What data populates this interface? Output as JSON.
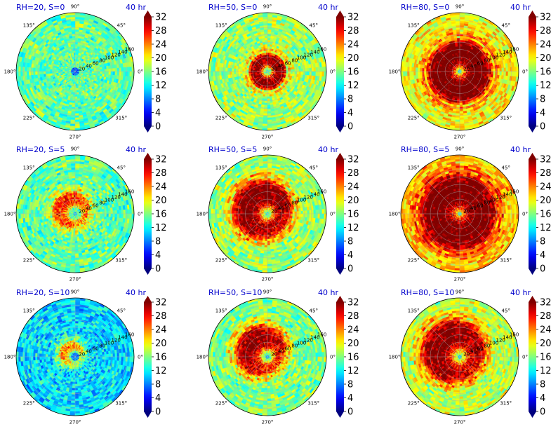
{
  "chart_data": {
    "type": "heatmap",
    "projection": "polar",
    "panel_time_label": "40 hr",
    "angle_tick_labels": [
      "0°",
      "45°",
      "90°",
      "135°",
      "180°",
      "225°",
      "270°",
      "315°"
    ],
    "radial_tick_labels": [
      "20",
      "40",
      "60",
      "80",
      "100",
      "120",
      "140",
      "160"
    ],
    "radial_range": [
      0,
      160
    ],
    "grid": true,
    "colormap": "jet",
    "colorbar": {
      "range": [
        0,
        32
      ],
      "ticks": [
        "0",
        "4",
        "8",
        "12",
        "16",
        "20",
        "24",
        "28",
        "32"
      ],
      "extend": "both"
    },
    "panels": [
      {
        "title": "RH=20, S=0",
        "core_value": 7,
        "core_radius": 12,
        "ring_value": 15,
        "ring_inner": 0,
        "ring_outer": 0,
        "background": 15,
        "asym": 0.0
      },
      {
        "title": "RH=50, S=0",
        "core_value": 14,
        "core_radius": 8,
        "ring_value": 32,
        "ring_inner": 10,
        "ring_outer": 55,
        "background": 17,
        "asym": 0.0
      },
      {
        "title": "RH=80, S=0",
        "core_value": 13,
        "core_radius": 6,
        "ring_value": 34,
        "ring_inner": 8,
        "ring_outer": 95,
        "background": 20,
        "asym": 0.0
      },
      {
        "title": "RH=20, S=5",
        "core_value": 10,
        "core_radius": 8,
        "ring_value": 27,
        "ring_inner": 15,
        "ring_outer": 55,
        "background": 15,
        "asym": 0.6
      },
      {
        "title": "RH=50, S=5",
        "core_value": 14,
        "core_radius": 8,
        "ring_value": 33,
        "ring_inner": 10,
        "ring_outer": 90,
        "background": 17,
        "asym": 0.4
      },
      {
        "title": "RH=80, S=5",
        "core_value": 13,
        "core_radius": 6,
        "ring_value": 34,
        "ring_inner": 8,
        "ring_outer": 115,
        "background": 22,
        "asym": 0.1
      },
      {
        "title": "RH=20, S=10",
        "core_value": 8,
        "core_radius": 10,
        "ring_value": 24,
        "ring_inner": 12,
        "ring_outer": 35,
        "background": 11,
        "asym": 0.9
      },
      {
        "title": "RH=50, S=10",
        "core_value": 10,
        "core_radius": 6,
        "ring_value": 32,
        "ring_inner": 12,
        "ring_outer": 75,
        "background": 16,
        "asym": 0.7
      },
      {
        "title": "RH=80, S=10",
        "core_value": 11,
        "core_radius": 6,
        "ring_value": 33,
        "ring_inner": 12,
        "ring_outer": 95,
        "background": 18,
        "asym": 0.5
      }
    ]
  }
}
